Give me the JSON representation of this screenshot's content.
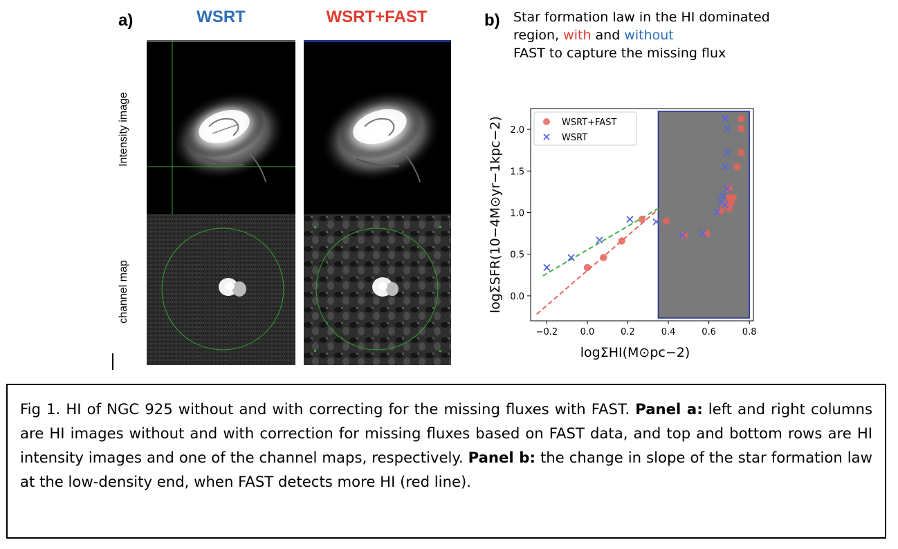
{
  "panel_a": {
    "letter": "a)",
    "col_left_title": "WSRT",
    "col_right_title": "WSRT+FAST",
    "row_top_label": "Intensity image",
    "row_bottom_label": "channel map",
    "colors": {
      "wsrt": "#2e6fb7",
      "fast": "#e03a2f",
      "guide": "#2fa52f",
      "frame_top": "#1f2f8f"
    }
  },
  "panel_b": {
    "letter": "b)",
    "title_prefix": "Star formation law in the HI dominated region, ",
    "title_with": "with",
    "title_and": " and ",
    "title_without": "without",
    "title_suffix": "FAST to capture the missing flux"
  },
  "chart_data": {
    "type": "scatter",
    "xlabel": "logΣHI(M⊙pc−2)",
    "ylabel": "logΣSFR(10−4M⊙yr−1kpc−2)",
    "xlim": [
      -0.28,
      0.82
    ],
    "ylim": [
      -0.3,
      2.25
    ],
    "xticks": [
      "−0.2",
      "0.0",
      "0.2",
      "0.4",
      "0.6",
      "0.8"
    ],
    "yticks": [
      "0.0",
      "0.5",
      "1.0",
      "1.5",
      "2.0"
    ],
    "legend_position": "top-left",
    "shaded_region": {
      "x": [
        0.35,
        0.8
      ],
      "color": "#7a7a7a"
    },
    "series": [
      {
        "name": "WSRT+FAST",
        "marker": "circle",
        "color": "#e8645a",
        "x": [
          0.0,
          0.08,
          0.17,
          0.27,
          0.39,
          0.48,
          0.59,
          0.66,
          0.68,
          0.7,
          0.7,
          0.71,
          0.72,
          0.7,
          0.74,
          0.76,
          0.76,
          0.76
        ],
        "y": [
          0.34,
          0.46,
          0.66,
          0.92,
          0.9,
          0.73,
          0.75,
          1.02,
          1.09,
          1.05,
          1.18,
          1.12,
          1.18,
          1.29,
          1.55,
          1.72,
          2.01,
          2.13
        ]
      },
      {
        "name": "WSRT",
        "marker": "x",
        "color": "#5566dd",
        "x": [
          -0.2,
          -0.08,
          0.06,
          0.21,
          0.34,
          0.47,
          0.57,
          0.64,
          0.66,
          0.67,
          0.68,
          0.69,
          0.68,
          0.69,
          0.69,
          0.68
        ],
        "y": [
          0.34,
          0.46,
          0.67,
          0.92,
          0.89,
          0.73,
          0.75,
          1.01,
          1.13,
          1.2,
          1.09,
          1.29,
          1.55,
          1.72,
          2.01,
          2.13
        ]
      }
    ],
    "fit_lines": [
      {
        "color": "#e8645a",
        "x": [
          -0.25,
          0.35
        ],
        "y": [
          -0.22,
          1.04
        ]
      },
      {
        "color": "#4caf50",
        "x": [
          -0.22,
          0.35
        ],
        "y": [
          0.24,
          1.05
        ]
      }
    ]
  },
  "caption": {
    "part1": "Fig 1. HI of NGC 925 without and with correcting for the missing fluxes with FAST. ",
    "panel_a_label": "Panel a:",
    "part2": " left and right columns are HI images without and with correction for missing fluxes based on FAST data, and top and bottom rows are HI intensity images and one of the channel maps, respectively. ",
    "panel_b_label": "Panel b:",
    "part3": " the change in slope of the star formation law at the low-density end, when FAST detects more HI (red line)."
  }
}
